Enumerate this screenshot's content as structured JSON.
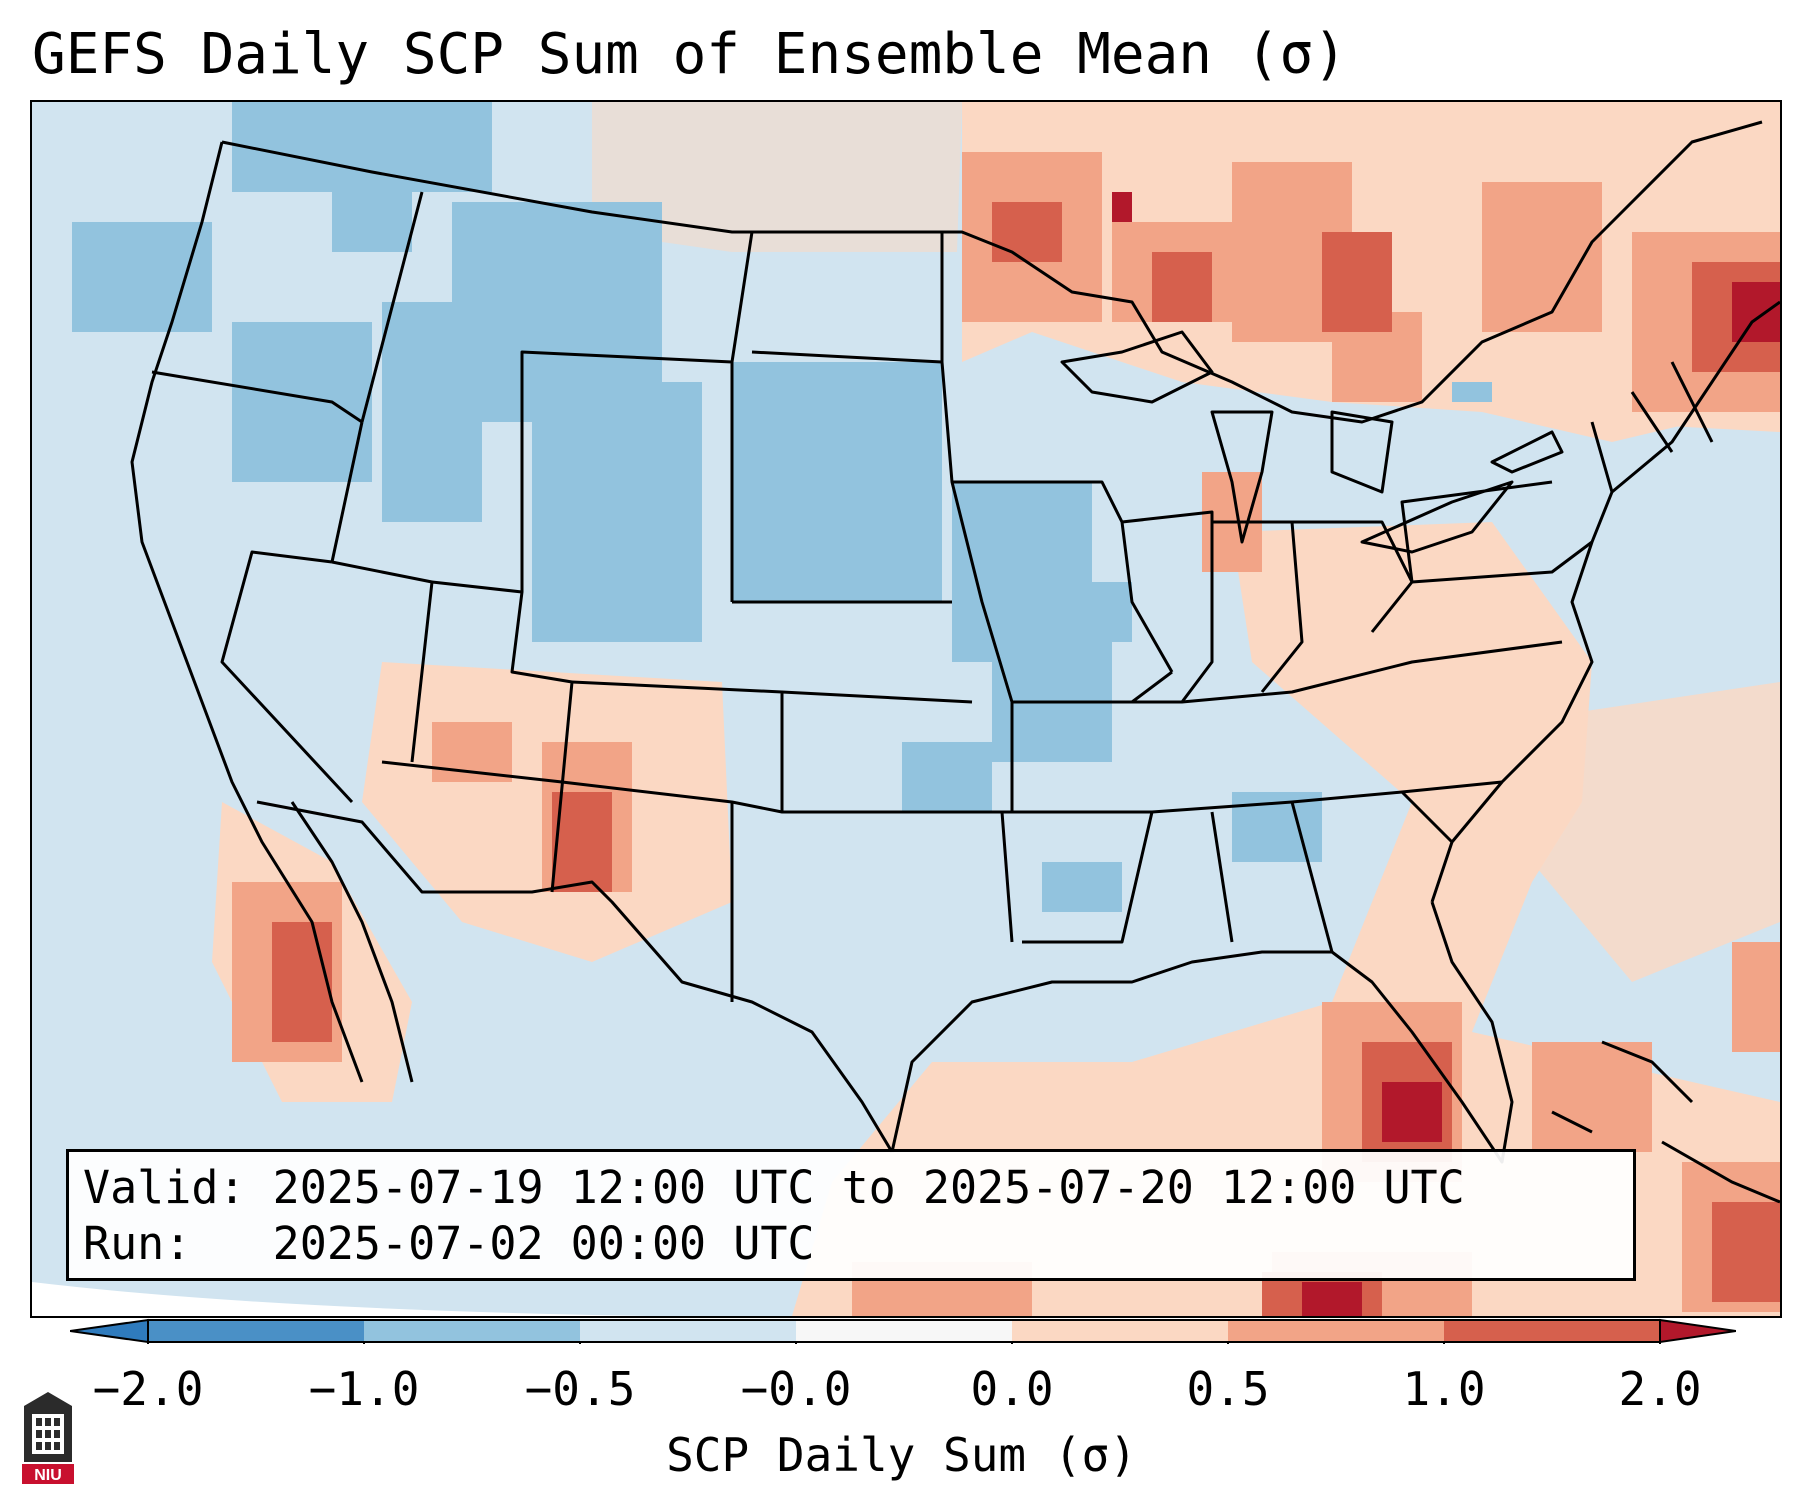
{
  "title": "GEFS Daily SCP Sum of Ensemble Mean (σ)",
  "info": {
    "valid_label": "Valid:",
    "valid_value": "2025-07-19 12:00 UTC to 2025-07-20 12:00 UTC",
    "run_label": "Run:",
    "run_value": "2025-07-02 00:00 UTC"
  },
  "colorbar": {
    "label": "SCP Daily Sum (σ)",
    "ticks": [
      "−2.0",
      "−1.0",
      "−0.5",
      "−0.0",
      "0.0",
      "0.5",
      "1.0",
      "2.0"
    ],
    "colors": [
      "#4a90c6",
      "#92c3de",
      "#d1e4f0",
      "#f7f7f7",
      "#fbd8c3",
      "#f2a487",
      "#d6604d"
    ],
    "under_color": "#2f7bbd",
    "over_color": "#b2182b"
  },
  "logo": {
    "text": "NIU"
  },
  "legend_colors": {
    "strong_negative": "#92c3de",
    "negative": "#d1e4f0",
    "near_zero": "#f7f7f7",
    "positive": "#fbd8c3",
    "moderate_positive": "#f2a487",
    "strong_positive": "#d6604d",
    "extreme_positive": "#b2182b"
  }
}
